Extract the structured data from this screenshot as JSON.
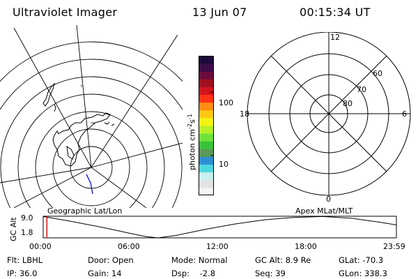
{
  "header": {
    "instrument": "Ultraviolet Imager",
    "date": "13 Jun 07",
    "time": "00:15:34 UT"
  },
  "colorbar": {
    "unit_label": "photon cm^-2 s^-1",
    "tick_labels": [
      "100",
      "10"
    ],
    "colors": [
      "#f5f5f5",
      "#e2e2e2",
      "#c9f0f0",
      "#4fd7e0",
      "#2f8fd6",
      "#5a9a5a",
      "#39c33a",
      "#6fe23a",
      "#b8f028",
      "#f4f414",
      "#ffc814",
      "#ff8c14",
      "#ff3214",
      "#d2141e",
      "#a0101e",
      "#6a0c3a",
      "#3c0c4a",
      "#1e0a3a"
    ]
  },
  "geo_map": {
    "label": "Geographic Lat/Lon"
  },
  "mlt_dial": {
    "label": "Apex MLat/MLT",
    "mlt_labels": {
      "top": "12",
      "left": "18",
      "right": "6",
      "bottom": "0"
    },
    "lat_labels": [
      "60",
      "70",
      "80"
    ]
  },
  "altitude_plot": {
    "ylabel": "GC Alt",
    "y_ticks": [
      "9.0",
      "1.8"
    ],
    "x_ticks": [
      "00:00",
      "06:00",
      "12:00",
      "18:00",
      "23:59"
    ],
    "cursor_time": "00:15"
  },
  "chart_data": {
    "type": "line",
    "title": "",
    "xlabel": "",
    "ylabel": "GC Alt",
    "x_unit": "hours UT",
    "xlim": [
      0,
      24
    ],
    "ylim": [
      1.8,
      9.0
    ],
    "x": [
      0,
      2,
      4,
      6,
      7,
      7.8,
      9,
      11,
      13,
      15,
      17,
      19,
      21,
      23,
      24
    ],
    "y": [
      8.9,
      7.2,
      5.3,
      3.2,
      2.2,
      1.8,
      2.6,
      4.6,
      6.4,
      7.8,
      8.6,
      8.9,
      8.3,
      6.9,
      6.1
    ]
  },
  "status": {
    "filter": "Flt: LBHL",
    "door": "Door: Open",
    "mode": "Mode: Normal",
    "gc_alt": "GC Alt: 8.9 Re",
    "glat": "GLat: -70.3",
    "ip": "IP: 36.0",
    "gain": "Gain: 14",
    "dsp": "Dsp:    -2.8",
    "seq": "Seq: 39",
    "glon": "GLon: 338.3"
  }
}
